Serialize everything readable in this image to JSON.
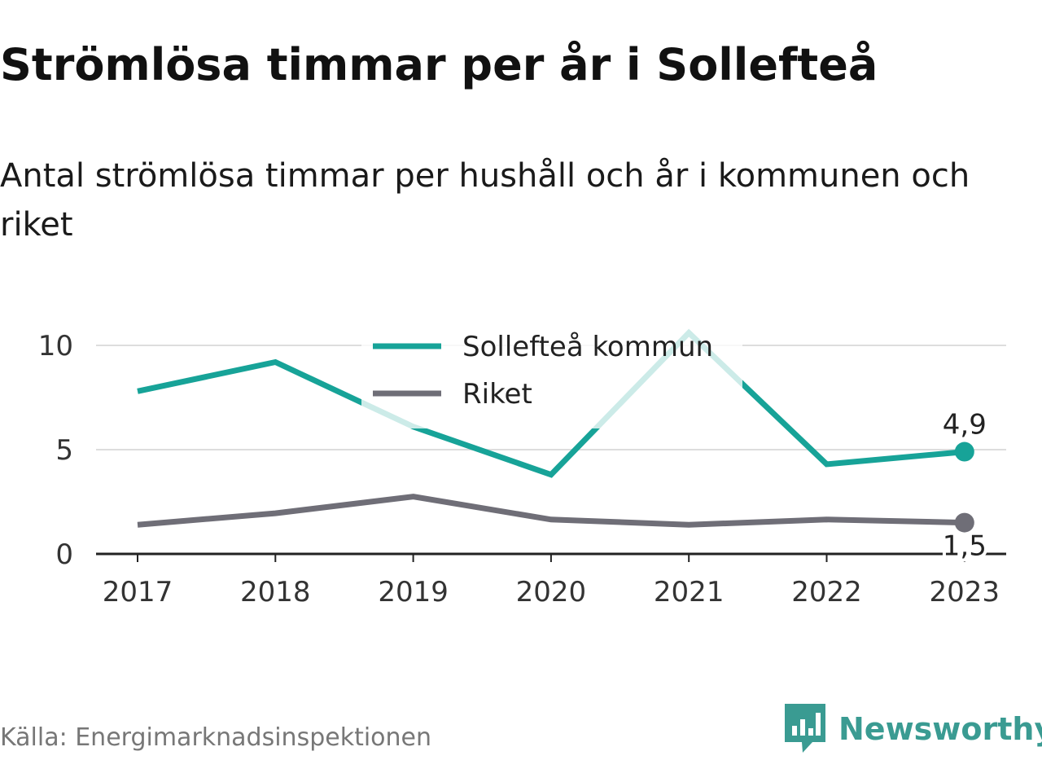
{
  "title": "Strömlösa timmar per år i Sollefteå",
  "subtitle": "Antal strömlösa timmar per hushåll och år i kommunen och riket",
  "source": "Källa: Energimarknadsinspektionen",
  "brand": {
    "name": "Newsworthy",
    "icon": "newsworthy-logo-icon",
    "color": "#3a9b92"
  },
  "chart_data": {
    "type": "line",
    "x": [
      "2017",
      "2018",
      "2019",
      "2020",
      "2021",
      "2022",
      "2023"
    ],
    "series": [
      {
        "name": "Sollefteå kommun",
        "color": "#17a398",
        "values": [
          7.8,
          9.2,
          6.1,
          3.8,
          10.6,
          4.3,
          4.9
        ],
        "end_label": "4,9"
      },
      {
        "name": "Riket",
        "color": "#6f6e77",
        "values": [
          1.4,
          1.95,
          2.75,
          1.65,
          1.4,
          1.65,
          1.5
        ],
        "end_label": "1,5"
      }
    ],
    "y_ticks": [
      {
        "value": 0,
        "label": "0"
      },
      {
        "value": 5,
        "label": "5"
      },
      {
        "value": 10,
        "label": "10"
      }
    ],
    "ylim": [
      0,
      10
    ],
    "grid": true,
    "legend": "top-center",
    "xlabel": "",
    "ylabel": ""
  }
}
